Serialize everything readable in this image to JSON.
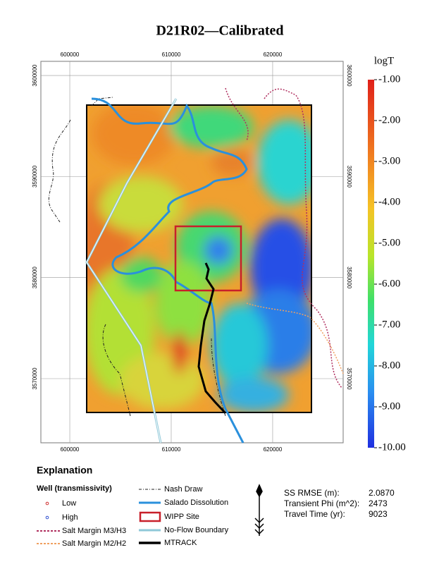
{
  "title": "D21R02—Calibrated",
  "map": {
    "xlim": [
      597150,
      626950
    ],
    "ylim": [
      3563650,
      3601400
    ],
    "xticks": [
      600000,
      610000,
      620000
    ],
    "yticks": [
      3600000,
      3590000,
      3580000,
      3570000
    ]
  },
  "colorbar": {
    "title": "logT",
    "lim": [
      -10,
      -1
    ],
    "ticks": [
      {
        "value": -1,
        "label": "-1.00"
      },
      {
        "value": -2,
        "label": "-2.00"
      },
      {
        "value": -3,
        "label": "-3.00"
      },
      {
        "value": -4,
        "label": "-4.00"
      },
      {
        "value": -5,
        "label": "-5.00"
      },
      {
        "value": -6,
        "label": "-6.00"
      },
      {
        "value": -7,
        "label": "-7.00"
      },
      {
        "value": -8,
        "label": "-8.00"
      },
      {
        "value": -9,
        "label": "-9.00"
      },
      {
        "value": -10,
        "label": "-10.00"
      }
    ]
  },
  "legend": {
    "title": "Explanation",
    "well_title": "Well (transmissivity)",
    "items": [
      "Low",
      "High",
      "Salt Margin M3/H3",
      "Salt Margin M2/H2",
      "Nash Draw",
      "Salado Dissolution",
      "WIPP Site",
      "No-Flow Boundary",
      "MTRACK"
    ]
  },
  "stats": [
    {
      "label": "SS RMSE (m):",
      "value": "2.0870"
    },
    {
      "label": "Transient Phi (m^2):",
      "value": 2473
    },
    {
      "label": "Travel Time (yr):",
      "value": 9023
    }
  ]
}
